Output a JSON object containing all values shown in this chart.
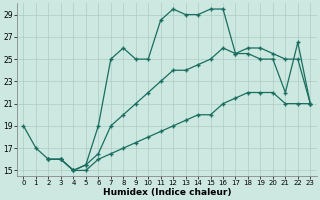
{
  "xlabel": "Humidex (Indice chaleur)",
  "bg_color": "#cce8e0",
  "grid_color_major": "#aaccc4",
  "grid_color_minor": "#bbddd6",
  "line_color": "#1a6e60",
  "xlim": [
    -0.5,
    23.5
  ],
  "ylim": [
    14.5,
    30.0
  ],
  "xticks": [
    0,
    1,
    2,
    3,
    4,
    5,
    6,
    7,
    8,
    9,
    10,
    11,
    12,
    13,
    14,
    15,
    16,
    17,
    18,
    19,
    20,
    21,
    22,
    23
  ],
  "yticks": [
    15,
    17,
    19,
    21,
    23,
    25,
    27,
    29
  ],
  "line1_x": [
    0,
    1,
    2,
    3,
    4,
    5,
    6,
    7,
    8,
    9,
    10,
    11,
    12,
    13,
    14,
    15,
    16,
    17,
    18,
    19,
    20,
    21,
    22,
    23
  ],
  "line1_y": [
    19,
    17,
    16,
    16,
    15,
    15.5,
    19,
    25,
    26,
    25,
    25,
    28.5,
    29.5,
    29,
    29,
    29.5,
    29.5,
    25.5,
    25.5,
    25,
    25,
    22,
    26.5,
    21
  ],
  "line2_x": [
    2,
    3,
    4,
    5,
    6,
    7,
    8,
    9,
    10,
    11,
    12,
    13,
    14,
    15,
    16,
    17,
    18,
    19,
    20,
    21,
    22,
    23
  ],
  "line2_y": [
    16,
    16,
    15,
    15.5,
    16.5,
    19,
    20,
    21,
    22,
    23,
    24,
    24,
    24.5,
    25,
    26,
    25.5,
    26,
    26,
    25.5,
    25,
    25,
    21
  ],
  "line3_x": [
    2,
    3,
    4,
    5,
    6,
    7,
    8,
    9,
    10,
    11,
    12,
    13,
    14,
    15,
    16,
    17,
    18,
    19,
    20,
    21,
    22,
    23
  ],
  "line3_y": [
    16,
    16,
    15,
    15,
    16,
    16.5,
    17,
    17.5,
    18,
    18.5,
    19,
    19.5,
    20,
    20,
    21,
    21.5,
    22,
    22,
    22,
    21,
    21,
    21
  ]
}
